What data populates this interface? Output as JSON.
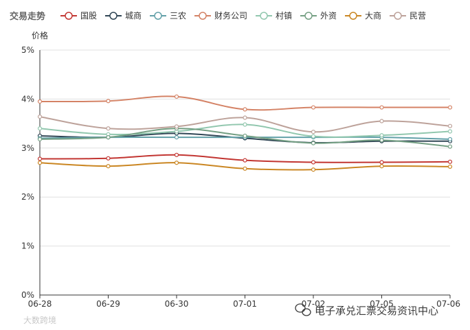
{
  "chart_data": {
    "type": "line",
    "title": "交易走势",
    "ylabel": "价格",
    "xlabel": "",
    "categories": [
      "06-28",
      "06-29",
      "06-30",
      "07-01",
      "07-02",
      "07-05",
      "07-06"
    ],
    "ylim": [
      0,
      5
    ],
    "yticks": [
      "0%",
      "1%",
      "2%",
      "3%",
      "4%",
      "5%"
    ],
    "grid": true,
    "legend_position": "top",
    "smooth": true,
    "series": [
      {
        "name": "国股",
        "color": "#c23531",
        "values": [
          2.78,
          2.79,
          2.86,
          2.75,
          2.71,
          2.71,
          2.72
        ]
      },
      {
        "name": "城商",
        "color": "#2f4554",
        "values": [
          3.25,
          3.22,
          3.3,
          3.2,
          3.11,
          3.14,
          3.14
        ]
      },
      {
        "name": "三农",
        "color": "#61a0a8",
        "values": [
          3.2,
          3.22,
          3.22,
          3.22,
          3.22,
          3.22,
          3.18
        ]
      },
      {
        "name": "财务公司",
        "color": "#d48265",
        "values": [
          3.95,
          3.96,
          4.05,
          3.79,
          3.83,
          3.83,
          3.83
        ]
      },
      {
        "name": "村镇",
        "color": "#91c7ae",
        "values": [
          3.4,
          3.28,
          3.34,
          3.48,
          3.24,
          3.26,
          3.34
        ]
      },
      {
        "name": "外资",
        "color": "#749f83",
        "values": [
          3.18,
          3.22,
          3.4,
          3.25,
          3.1,
          3.16,
          3.03
        ]
      },
      {
        "name": "大商",
        "color": "#ca8622",
        "values": [
          2.7,
          2.63,
          2.7,
          2.58,
          2.56,
          2.63,
          2.62
        ]
      },
      {
        "name": "民营",
        "color": "#bda29a",
        "values": [
          3.64,
          3.4,
          3.44,
          3.62,
          3.33,
          3.55,
          3.45
        ]
      }
    ]
  },
  "watermark": {
    "left": "大数跨境",
    "right": "电子承兑汇票交易资讯中心",
    "icon": "wechat-icon"
  },
  "colors": {
    "grid": "#e0e0e0",
    "axis": "#333333",
    "text": "#333333"
  }
}
